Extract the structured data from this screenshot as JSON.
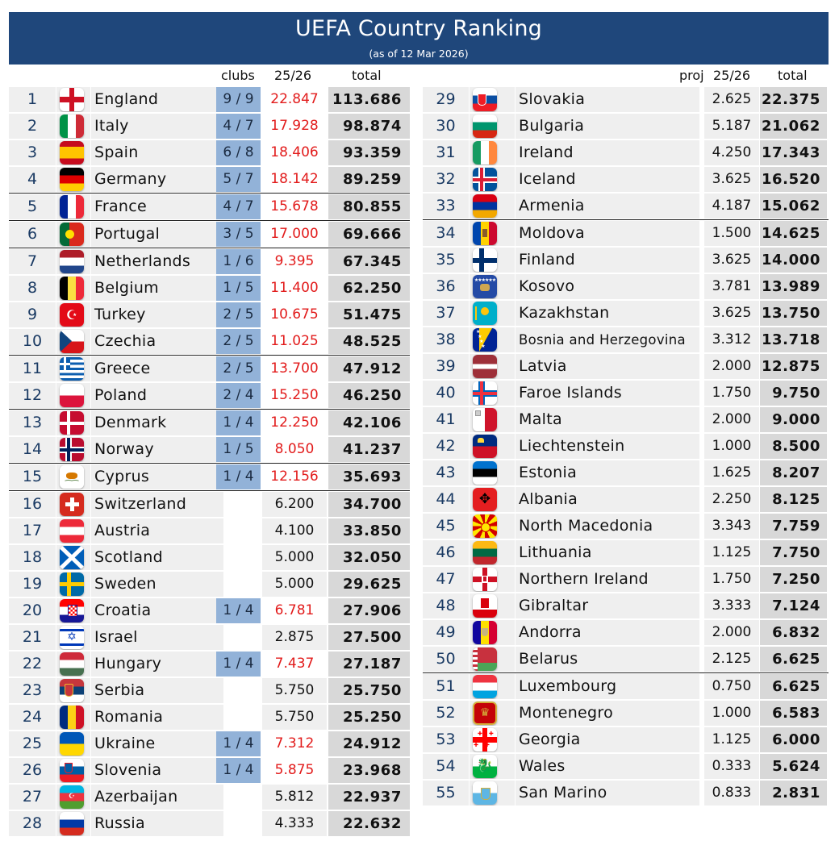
{
  "header": {
    "title": "UEFA Country Ranking",
    "subtitle": "(as of 12 Mar 2026)"
  },
  "left_columns": {
    "clubs": "clubs",
    "season": "25/26",
    "total": "total"
  },
  "right_columns": {
    "proj": "proj",
    "season": "25/26",
    "total": "total"
  },
  "left_rows": [
    {
      "rank": "1",
      "name": "England",
      "clubs": "9 / 9",
      "season": "22.847",
      "total": "113.686",
      "flag": "england-flag-icon",
      "f": "england"
    },
    {
      "rank": "2",
      "name": "Italy",
      "clubs": "4 / 7",
      "season": "17.928",
      "total": "98.874",
      "flag": "italy-flag-icon",
      "f": "italy"
    },
    {
      "rank": "3",
      "name": "Spain",
      "clubs": "6 / 8",
      "season": "18.406",
      "total": "93.359",
      "flag": "spain-flag-icon",
      "f": "spain"
    },
    {
      "rank": "4",
      "name": "Germany",
      "clubs": "5 / 7",
      "season": "18.142",
      "total": "89.259",
      "flag": "germany-flag-icon",
      "f": "germany"
    },
    {
      "rank": "5",
      "name": "France",
      "clubs": "4 / 7",
      "season": "15.678",
      "total": "80.855",
      "flag": "france-flag-icon",
      "f": "france"
    },
    {
      "rank": "6",
      "name": "Portugal",
      "clubs": "3 / 5",
      "season": "17.000",
      "total": "69.666",
      "flag": "portugal-flag-icon",
      "f": "portugal"
    },
    {
      "rank": "7",
      "name": "Netherlands",
      "clubs": "1 / 6",
      "season": "9.395",
      "total": "67.345",
      "flag": "netherlands-flag-icon",
      "f": "netherlands"
    },
    {
      "rank": "8",
      "name": "Belgium",
      "clubs": "1 / 5",
      "season": "11.400",
      "total": "62.250",
      "flag": "belgium-flag-icon",
      "f": "belgium"
    },
    {
      "rank": "9",
      "name": "Turkey",
      "clubs": "2 / 5",
      "season": "10.675",
      "total": "51.475",
      "flag": "turkey-flag-icon",
      "f": "turkey"
    },
    {
      "rank": "10",
      "name": "Czechia",
      "clubs": "2 / 5",
      "season": "11.025",
      "total": "48.525",
      "flag": "czechia-flag-icon",
      "f": "czechia"
    },
    {
      "rank": "11",
      "name": "Greece",
      "clubs": "2 / 5",
      "season": "13.700",
      "total": "47.912",
      "flag": "greece-flag-icon",
      "f": "greece"
    },
    {
      "rank": "12",
      "name": "Poland",
      "clubs": "2 / 4",
      "season": "15.250",
      "total": "46.250",
      "flag": "poland-flag-icon",
      "f": "poland"
    },
    {
      "rank": "13",
      "name": "Denmark",
      "clubs": "1 / 4",
      "season": "12.250",
      "total": "42.106",
      "flag": "denmark-flag-icon",
      "f": "denmark"
    },
    {
      "rank": "14",
      "name": "Norway",
      "clubs": "1 / 5",
      "season": "8.050",
      "total": "41.237",
      "flag": "norway-flag-icon",
      "f": "norway"
    },
    {
      "rank": "15",
      "name": "Cyprus",
      "clubs": "1 / 4",
      "season": "12.156",
      "total": "35.693",
      "flag": "cyprus-flag-icon",
      "f": "cyprus"
    },
    {
      "rank": "16",
      "name": "Switzerland",
      "clubs": "",
      "season": "6.200",
      "total": "34.700",
      "flag": "switzerland-flag-icon",
      "f": "switzerland"
    },
    {
      "rank": "17",
      "name": "Austria",
      "clubs": "",
      "season": "4.100",
      "total": "33.850",
      "flag": "austria-flag-icon",
      "f": "austria"
    },
    {
      "rank": "18",
      "name": "Scotland",
      "clubs": "",
      "season": "5.000",
      "total": "32.050",
      "flag": "scotland-flag-icon",
      "f": "scotland"
    },
    {
      "rank": "19",
      "name": "Sweden",
      "clubs": "",
      "season": "5.000",
      "total": "29.625",
      "flag": "sweden-flag-icon",
      "f": "sweden"
    },
    {
      "rank": "20",
      "name": "Croatia",
      "clubs": "1 / 4",
      "season": "6.781",
      "total": "27.906",
      "flag": "croatia-flag-icon",
      "f": "croatia"
    },
    {
      "rank": "21",
      "name": "Israel",
      "clubs": "",
      "season": "2.875",
      "total": "27.500",
      "flag": "israel-flag-icon",
      "f": "israel"
    },
    {
      "rank": "22",
      "name": "Hungary",
      "clubs": "1 / 4",
      "season": "7.437",
      "total": "27.187",
      "flag": "hungary-flag-icon",
      "f": "hungary"
    },
    {
      "rank": "23",
      "name": "Serbia",
      "clubs": "",
      "season": "5.750",
      "total": "25.750",
      "flag": "serbia-flag-icon",
      "f": "serbia"
    },
    {
      "rank": "24",
      "name": "Romania",
      "clubs": "",
      "season": "5.750",
      "total": "25.250",
      "flag": "romania-flag-icon",
      "f": "romania"
    },
    {
      "rank": "25",
      "name": "Ukraine",
      "clubs": "1 / 4",
      "season": "7.312",
      "total": "24.912",
      "flag": "ukraine-flag-icon",
      "f": "ukraine"
    },
    {
      "rank": "26",
      "name": "Slovenia",
      "clubs": "1 / 4",
      "season": "5.875",
      "total": "23.968",
      "flag": "slovenia-flag-icon",
      "f": "slovenia"
    },
    {
      "rank": "27",
      "name": "Azerbaijan",
      "clubs": "",
      "season": "5.812",
      "total": "22.937",
      "flag": "azerbaijan-flag-icon",
      "f": "azerbaijan"
    },
    {
      "rank": "28",
      "name": "Russia",
      "clubs": "",
      "season": "4.333",
      "total": "22.632",
      "flag": "russia-flag-icon",
      "f": "russia"
    }
  ],
  "right_rows": [
    {
      "rank": "29",
      "name": "Slovakia",
      "proj": "2.625",
      "total": "22.375",
      "flag": "slovakia-flag-icon",
      "f": "slovakia"
    },
    {
      "rank": "30",
      "name": "Bulgaria",
      "proj": "5.187",
      "total": "21.062",
      "flag": "bulgaria-flag-icon",
      "f": "bulgaria"
    },
    {
      "rank": "31",
      "name": "Ireland",
      "proj": "4.250",
      "total": "17.343",
      "flag": "ireland-flag-icon",
      "f": "ireland"
    },
    {
      "rank": "32",
      "name": "Iceland",
      "proj": "3.625",
      "total": "16.520",
      "flag": "iceland-flag-icon",
      "f": "iceland"
    },
    {
      "rank": "33",
      "name": "Armenia",
      "proj": "4.187",
      "total": "15.062",
      "flag": "armenia-flag-icon",
      "f": "armenia"
    },
    {
      "rank": "34",
      "name": "Moldova",
      "proj": "1.500",
      "total": "14.625",
      "flag": "moldova-flag-icon",
      "f": "moldova"
    },
    {
      "rank": "35",
      "name": "Finland",
      "proj": "3.625",
      "total": "14.000",
      "flag": "finland-flag-icon",
      "f": "finland"
    },
    {
      "rank": "36",
      "name": "Kosovo",
      "proj": "3.781",
      "total": "13.989",
      "flag": "kosovo-flag-icon",
      "f": "kosovo"
    },
    {
      "rank": "37",
      "name": "Kazakhstan",
      "proj": "3.625",
      "total": "13.750",
      "flag": "kazakhstan-flag-icon",
      "f": "kazakhstan"
    },
    {
      "rank": "38",
      "name": "Bosnia and Herzegovina",
      "proj": "3.312",
      "total": "13.718",
      "flag": "bosnia-flag-icon",
      "f": "bosnia"
    },
    {
      "rank": "39",
      "name": "Latvia",
      "proj": "2.000",
      "total": "12.875",
      "flag": "latvia-flag-icon",
      "f": "latvia"
    },
    {
      "rank": "40",
      "name": "Faroe Islands",
      "proj": "1.750",
      "total": "9.750",
      "flag": "faroe-islands-flag-icon",
      "f": "faroe"
    },
    {
      "rank": "41",
      "name": "Malta",
      "proj": "2.000",
      "total": "9.000",
      "flag": "malta-flag-icon",
      "f": "malta"
    },
    {
      "rank": "42",
      "name": "Liechtenstein",
      "proj": "1.000",
      "total": "8.500",
      "flag": "liechtenstein-flag-icon",
      "f": "liechtenstein"
    },
    {
      "rank": "43",
      "name": "Estonia",
      "proj": "1.625",
      "total": "8.207",
      "flag": "estonia-flag-icon",
      "f": "estonia"
    },
    {
      "rank": "44",
      "name": "Albania",
      "proj": "2.250",
      "total": "8.125",
      "flag": "albania-flag-icon",
      "f": "albania"
    },
    {
      "rank": "45",
      "name": "North Macedonia",
      "proj": "3.343",
      "total": "7.759",
      "flag": "north-macedonia-flag-icon",
      "f": "macedonia"
    },
    {
      "rank": "46",
      "name": "Lithuania",
      "proj": "1.125",
      "total": "7.750",
      "flag": "lithuania-flag-icon",
      "f": "lithuania"
    },
    {
      "rank": "47",
      "name": "Northern Ireland",
      "proj": "1.750",
      "total": "7.250",
      "flag": "northern-ireland-flag-icon",
      "f": "nireland"
    },
    {
      "rank": "48",
      "name": "Gibraltar",
      "proj": "3.333",
      "total": "7.124",
      "flag": "gibraltar-flag-icon",
      "f": "gibraltar"
    },
    {
      "rank": "49",
      "name": "Andorra",
      "proj": "2.000",
      "total": "6.832",
      "flag": "andorra-flag-icon",
      "f": "andorra"
    },
    {
      "rank": "50",
      "name": "Belarus",
      "proj": "2.125",
      "total": "6.625",
      "flag": "belarus-flag-icon",
      "f": "belarus"
    },
    {
      "rank": "51",
      "name": "Luxembourg",
      "proj": "0.750",
      "total": "6.625",
      "flag": "luxembourg-flag-icon",
      "f": "luxembourg"
    },
    {
      "rank": "52",
      "name": "Montenegro",
      "proj": "1.000",
      "total": "6.583",
      "flag": "montenegro-flag-icon",
      "f": "montenegro"
    },
    {
      "rank": "53",
      "name": "Georgia",
      "proj": "1.125",
      "total": "6.000",
      "flag": "georgia-flag-icon",
      "f": "georgia"
    },
    {
      "rank": "54",
      "name": "Wales",
      "proj": "0.333",
      "total": "5.624",
      "flag": "wales-flag-icon",
      "f": "wales"
    },
    {
      "rank": "55",
      "name": "San Marino",
      "proj": "0.833",
      "total": "2.831",
      "flag": "san-marino-flag-icon",
      "f": "sanmarino"
    }
  ]
}
